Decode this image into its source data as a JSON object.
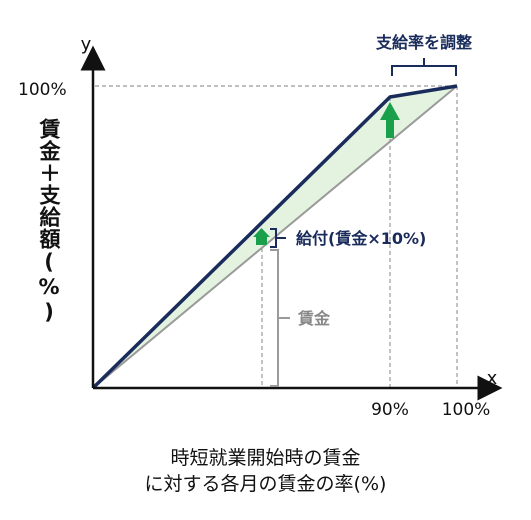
{
  "diagram": {
    "axis_x_label": "x",
    "axis_y_label": "y",
    "y_tick_100": "100%",
    "x_tick_90": "90%",
    "x_tick_100": "100%",
    "y_axis_title": "賃金＋支給額(%)",
    "adjust_label": "支給率を調整",
    "benefit_label": "給付(賃金×10%)",
    "wage_label": "賃金",
    "x_caption_line1": "時短就業開始時の賃金",
    "x_caption_line2": "に対する各月の賃金の率(%)",
    "colors": {
      "total_line": "#1a2c5b",
      "wage_line": "#9a9a9a",
      "fill": "#e3f3df",
      "arrow": "#1aa04a"
    }
  }
}
